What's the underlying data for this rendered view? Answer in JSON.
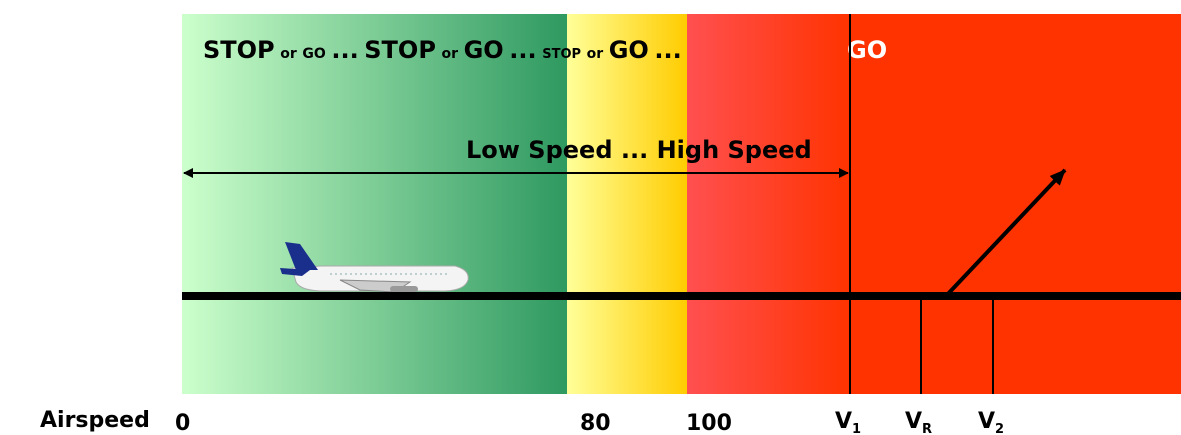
{
  "header": {
    "phrases": [
      "STOP",
      "or",
      "GO",
      "...",
      "STOP",
      "or",
      "GO",
      "...",
      "STOP",
      "or",
      "GO",
      "...",
      "GO"
    ]
  },
  "speed_range": "Low Speed ... High Speed",
  "axis": {
    "title": "Airspeed",
    "labels": [
      "0",
      "80",
      "100"
    ],
    "v_speeds": [
      {
        "main": "V",
        "sub": "1"
      },
      {
        "main": "V",
        "sub": "R"
      },
      {
        "main": "V",
        "sub": "2"
      }
    ]
  }
}
